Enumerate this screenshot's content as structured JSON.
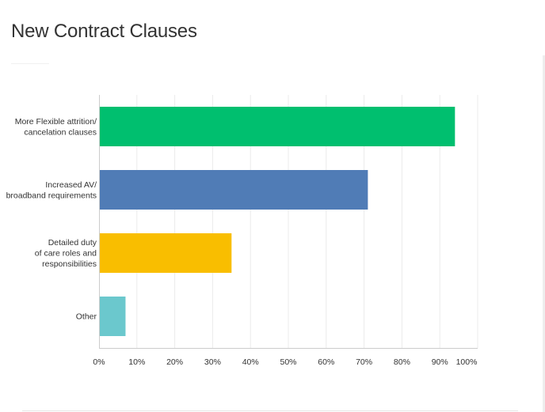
{
  "title": "New Contract Clauses",
  "chart_data": {
    "type": "bar",
    "orientation": "horizontal",
    "categories": [
      [
        "More Flexible attrition/",
        "cancelation clauses"
      ],
      [
        "Increased AV/",
        "broadband requirements"
      ],
      [
        "Detailed duty",
        "of care roles and",
        "responsibilities"
      ],
      [
        "Other"
      ]
    ],
    "values": [
      94,
      71,
      35,
      7
    ],
    "colors": [
      "#00bf6f",
      "#507cb6",
      "#f9be00",
      "#6bc8cd"
    ],
    "xlim": [
      0,
      100
    ],
    "xticks": [
      "0%",
      "10%",
      "20%",
      "30%",
      "40%",
      "50%",
      "60%",
      "70%",
      "80%",
      "90%",
      "100%"
    ],
    "grid": true,
    "legend": "none"
  }
}
